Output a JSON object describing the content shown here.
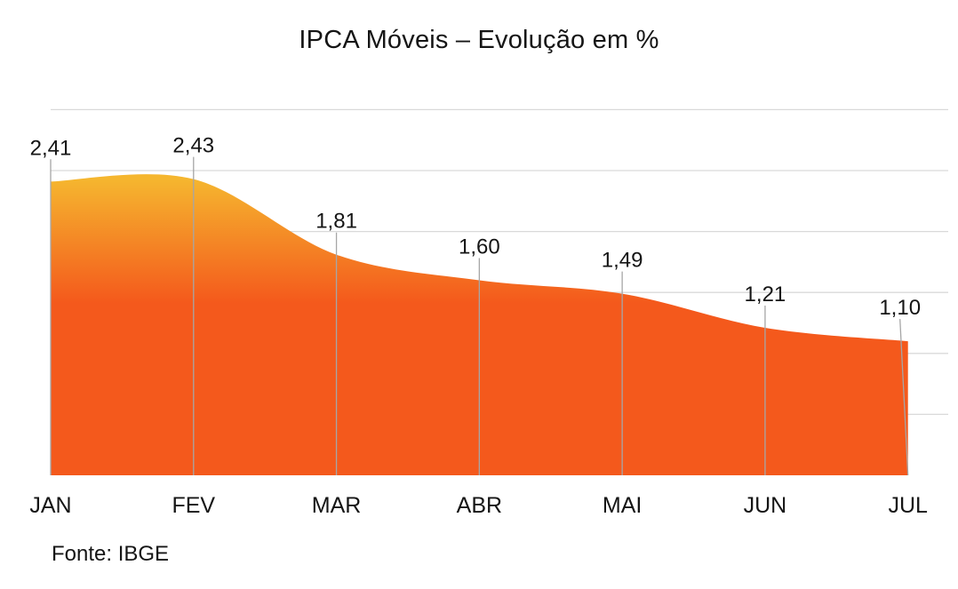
{
  "page": {
    "background": "#FFFFFF"
  },
  "chart_data": {
    "type": "area",
    "title": "IPCA Móveis – Evolução em %",
    "source": "Fonte: IBGE",
    "categories": [
      "JAN",
      "FEV",
      "MAR",
      "ABR",
      "MAI",
      "JUN",
      "JUL"
    ],
    "values": [
      2.41,
      2.43,
      1.81,
      1.6,
      1.49,
      1.21,
      1.1
    ],
    "value_labels": [
      "2,41",
      "2,43",
      "1,81",
      "1,60",
      "1,49",
      "1,21",
      "1,10"
    ],
    "xlabel": "",
    "ylabel": "",
    "ylim": [
      0,
      3.0
    ],
    "gridline_values": [
      0.5,
      1.0,
      1.5,
      2.0,
      2.5,
      3.0
    ],
    "grid": true,
    "legend": false,
    "smoothed_line": true,
    "colors": {
      "area_gradient_top": "#F5B62F",
      "area_gradient_bottom": "#F4591C",
      "gradient_orange_stop": 0.42,
      "gridline": "#D9D9D9",
      "leader_line": "#A6A6A6",
      "text": "#151515"
    }
  }
}
